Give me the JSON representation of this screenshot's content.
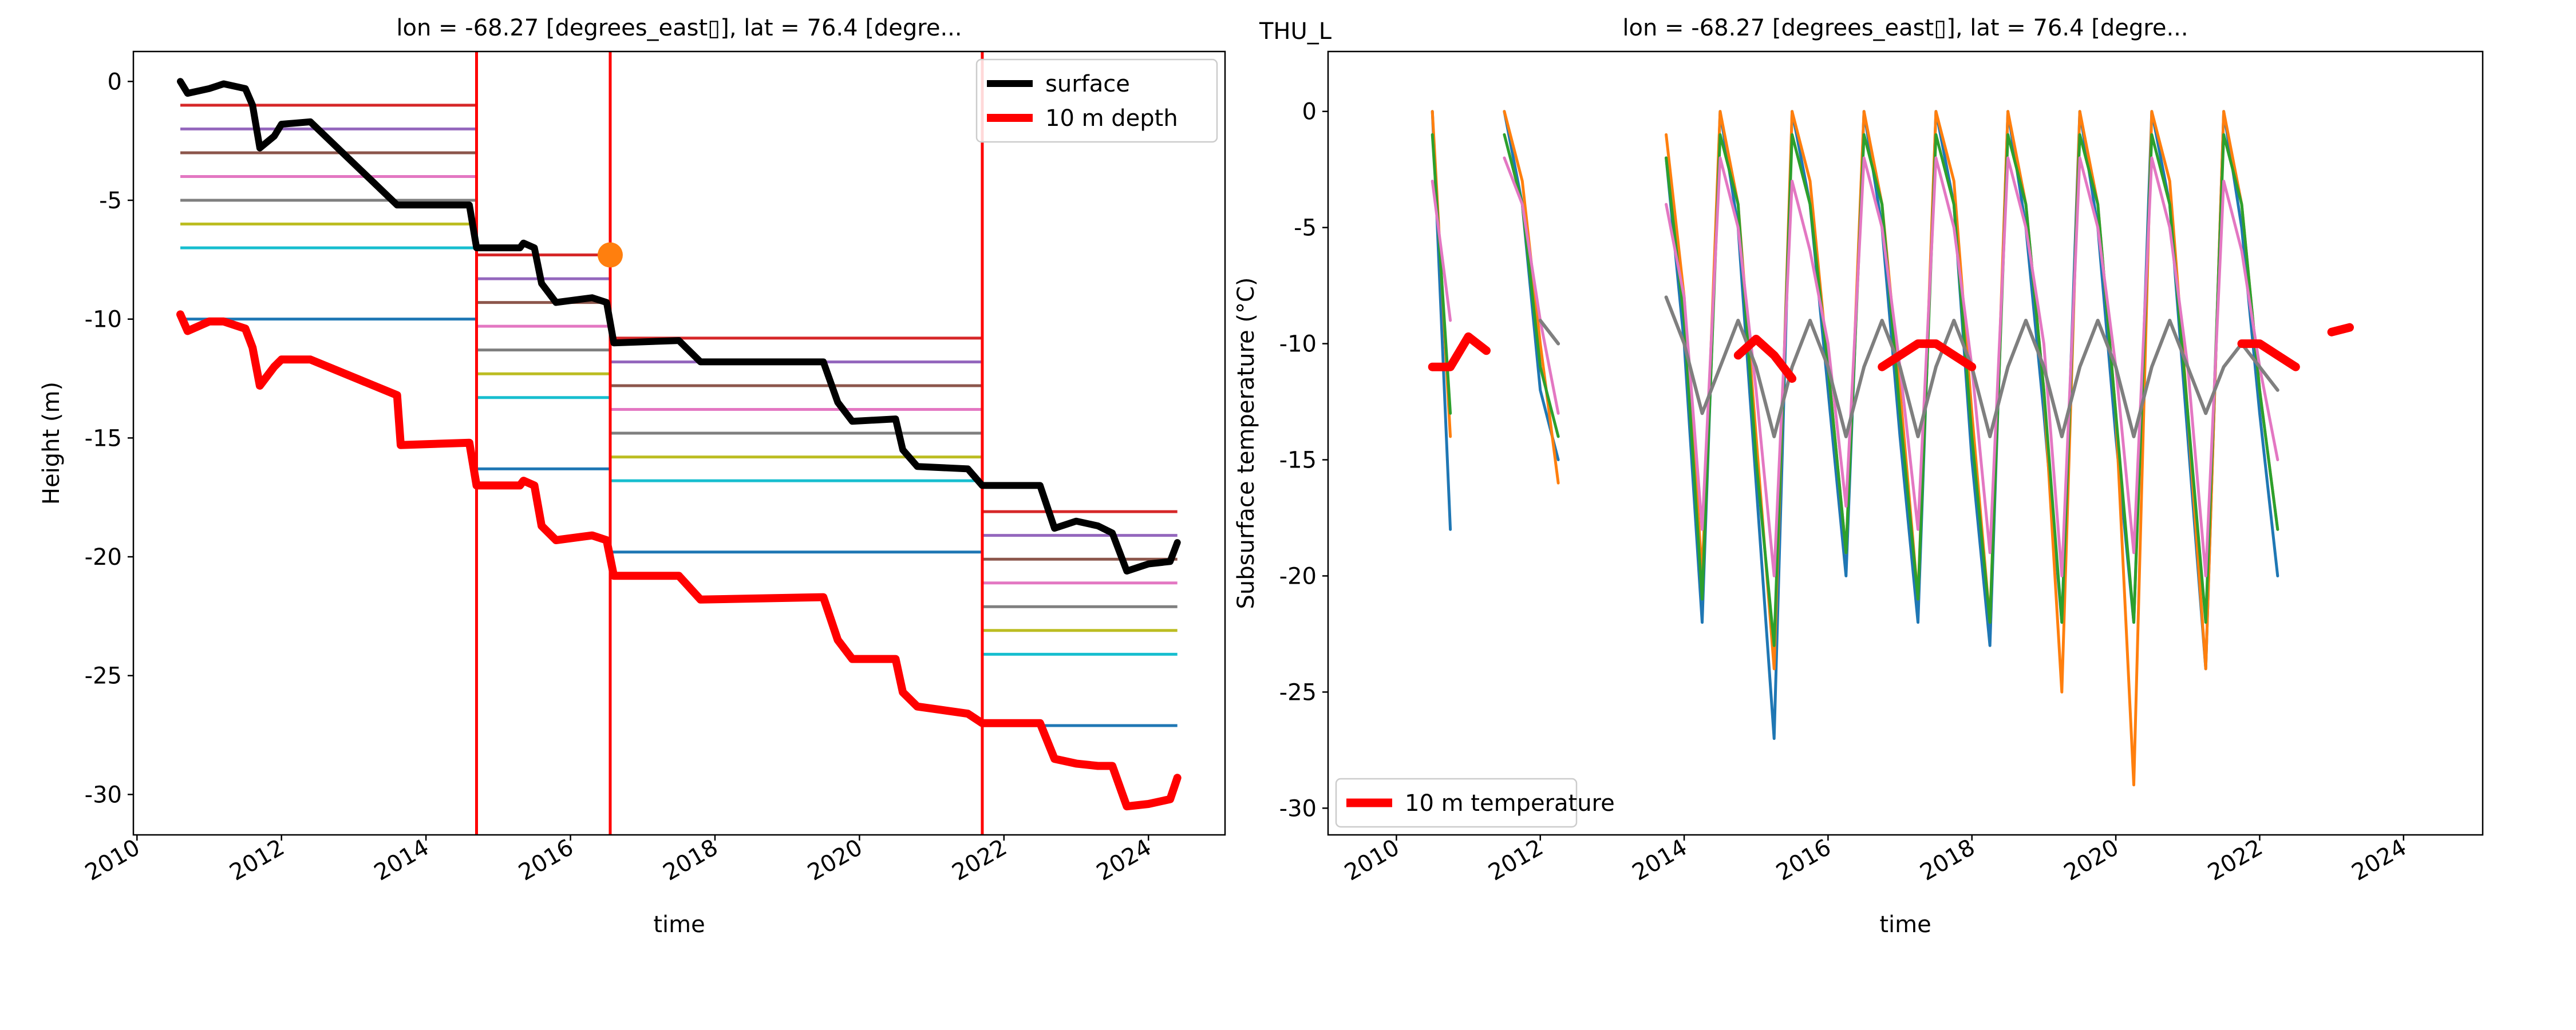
{
  "station": "THU_L",
  "chart_data": [
    {
      "type": "line",
      "title": "lon = -68.27 [degrees_east▯], lat = 76.4 [degre...",
      "x_label": "time",
      "y_label": "Height (m)",
      "xlim": [
        2009.95,
        2025.06
      ],
      "ylim": [
        -31.7,
        1.26
      ],
      "xticks": [
        2010,
        2012,
        2014,
        2016,
        2018,
        2020,
        2022,
        2024
      ],
      "yticks": [
        0,
        -5,
        -10,
        -15,
        -20,
        -25,
        -30
      ],
      "legend": "upper right",
      "x": [
        2010.6,
        2010.7,
        2011.0,
        2011.2,
        2011.5,
        2011.6,
        2011.7,
        2011.9,
        2012.0,
        2012.4,
        2013.6,
        2013.65,
        2014.6,
        2014.7,
        2015.3,
        2015.35,
        2015.5,
        2015.6,
        2015.8,
        2016.3,
        2016.5,
        2016.6,
        2017.5,
        2017.8,
        2019.5,
        2019.7,
        2019.9,
        2020.5,
        2020.6,
        2020.8,
        2021.5,
        2021.7,
        2022.5,
        2022.7,
        2023.0,
        2023.3,
        2023.5,
        2023.7,
        2024.0,
        2024.3,
        2024.4
      ],
      "series": [
        {
          "name": "surface",
          "color": "#000000",
          "width": 12,
          "values": [
            0,
            -0.5,
            -0.3,
            -0.1,
            -0.3,
            -1,
            -2.8,
            -2.3,
            -1.8,
            -1.7,
            -5.2,
            -5.2,
            -5.2,
            -7,
            -7,
            -6.8,
            -7,
            -8.5,
            -9.3,
            -9.1,
            -9.3,
            -11,
            -10.9,
            -11.8,
            -11.8,
            -13.5,
            -14.3,
            -14.2,
            -15.5,
            -16.2,
            -16.3,
            -17,
            -17,
            -18.8,
            -18.5,
            -18.7,
            -19,
            -20.6,
            -20.3,
            -20.2,
            -19.4
          ]
        },
        {
          "name": "10 m depth",
          "color": "#ff0000",
          "width": 14,
          "values": [
            -9.8,
            -10.5,
            -10.1,
            -10.1,
            -10.4,
            -11.2,
            -12.8,
            -12,
            -11.7,
            -11.7,
            -13.2,
            -15.3,
            -15.2,
            -17,
            -17,
            -16.8,
            -17,
            -18.7,
            -19.3,
            -19.1,
            -19.3,
            -20.8,
            -20.8,
            -21.8,
            -21.7,
            -23.5,
            -24.3,
            -24.3,
            -25.7,
            -26.3,
            -26.6,
            -27,
            -27,
            -28.5,
            -28.7,
            -28.8,
            -28.8,
            -30.5,
            -30.4,
            -30.2,
            -29.3
          ]
        }
      ],
      "installation_colors": [
        "#d62728",
        "#9467bd",
        "#8c564b",
        "#e377c2",
        "#7f7f7f",
        "#bcbd22",
        "#17becf",
        "#1f77b4"
      ],
      "installations": [
        {
          "start": 2010.6,
          "end": 2014.7,
          "depths": [
            -1,
            -2,
            -3,
            -4,
            -5,
            -6,
            -7,
            -10
          ]
        },
        {
          "start": 2014.7,
          "end": 2016.55,
          "depths": [
            -7.3,
            -8.3,
            -9.3,
            -10.3,
            -11.3,
            -12.3,
            -13.3,
            -16.3
          ]
        },
        {
          "start": 2016.55,
          "end": 2021.7,
          "depths": [
            -10.8,
            -11.8,
            -12.8,
            -13.8,
            -14.8,
            -15.8,
            -16.8,
            -19.8
          ]
        },
        {
          "start": 2021.7,
          "end": 2024.4,
          "depths": [
            -18.1,
            -19.1,
            -20.1,
            -21.1,
            -22.1,
            -23.1,
            -24.1,
            -27.1
          ]
        }
      ],
      "vlines": [
        2014.7,
        2016.55,
        2021.7
      ],
      "vline_color": "#ff0000",
      "marker": {
        "x": 2016.55,
        "y": -7.3,
        "color": "#ff7f0e"
      }
    },
    {
      "type": "line",
      "title": "lon = -68.27 [degrees_east▯], lat = 76.4 [degre...",
      "x_label": "time",
      "y_label": "Subsurface temperature (°C)",
      "xlim": [
        2009.05,
        2025.1
      ],
      "ylim": [
        -31.15,
        2.58
      ],
      "xticks": [
        2010,
        2012,
        2014,
        2016,
        2018,
        2020,
        2022,
        2024
      ],
      "yticks": [
        0,
        -5,
        -10,
        -15,
        -20,
        -25,
        -30
      ],
      "legend": "lower left",
      "x": [
        2010.5,
        2010.75,
        2011,
        2011.25,
        2011.5,
        2011.75,
        2012,
        2012.25,
        2012.5,
        2012.75,
        2013,
        2013.25,
        2013.5,
        2013.75,
        2014,
        2014.25,
        2014.5,
        2014.75,
        2015,
        2015.25,
        2015.5,
        2015.75,
        2016,
        2016.25,
        2016.5,
        2016.75,
        2017,
        2017.25,
        2017.5,
        2017.75,
        2018,
        2018.25,
        2018.5,
        2018.75,
        2019,
        2019.25,
        2019.5,
        2019.75,
        2020,
        2020.25,
        2020.5,
        2020.75,
        2021,
        2021.25,
        2021.5,
        2021.75,
        2022,
        2022.25,
        2022.5,
        2022.75,
        2023,
        2023.25
      ],
      "series": [
        {
          "color": "#1f77b4",
          "width": 5,
          "values": [
            0,
            -18,
            null,
            null,
            0,
            -4,
            -12,
            -15,
            null,
            null,
            null,
            null,
            null,
            -2,
            -10,
            -22,
            0,
            -5,
            -16,
            -27,
            0,
            -4,
            -12,
            -20,
            0,
            -5,
            -14,
            -22,
            0,
            -4,
            -15,
            -23,
            0,
            -5,
            -13,
            -22,
            0,
            -5,
            -14,
            -22,
            0,
            -4,
            -14,
            -24,
            0,
            -5,
            -13,
            -20,
            null,
            null,
            null,
            null
          ]
        },
        {
          "color": "#ff7f0e",
          "width": 5,
          "values": [
            0,
            -14,
            null,
            null,
            0,
            -3,
            -10,
            -16,
            null,
            null,
            null,
            null,
            null,
            -1,
            -8,
            -20,
            0,
            -4,
            -14,
            -24,
            0,
            -3,
            -11,
            -19,
            0,
            -4,
            -12,
            -21,
            0,
            -3,
            -13,
            -22,
            0,
            -4,
            -12,
            -25,
            0,
            -4,
            -13,
            -29,
            0,
            -3,
            -13,
            -24,
            0,
            -4,
            -12,
            -18,
            null,
            null,
            null,
            null
          ]
        },
        {
          "color": "#2ca02c",
          "width": 5,
          "values": [
            -1,
            -13,
            null,
            null,
            -1,
            -4,
            -11,
            -14,
            null,
            null,
            null,
            null,
            null,
            -2,
            -9,
            -21,
            -1,
            -4,
            -15,
            -23,
            -1,
            -4,
            -11,
            -19,
            -1,
            -4,
            -13,
            -21,
            -1,
            -4,
            -14,
            -22,
            -1,
            -4,
            -12,
            -22,
            -1,
            -4,
            -13,
            -22,
            -1,
            -4,
            -13,
            -22,
            -1,
            -4,
            -12,
            -18,
            null,
            null,
            null,
            null
          ]
        },
        {
          "color": "#e377c2",
          "width": 5,
          "values": [
            -3,
            -9,
            null,
            null,
            -2,
            -4,
            -9,
            -13,
            null,
            null,
            null,
            null,
            null,
            -4,
            -8,
            -18,
            -2,
            -5,
            -12,
            -20,
            -3,
            -6,
            -10,
            -17,
            -2,
            -5,
            -11,
            -18,
            -2,
            -5,
            -11,
            -19,
            -2,
            -5,
            -10,
            -20,
            -2,
            -5,
            -11,
            -19,
            -2,
            -5,
            -11,
            -20,
            -3,
            -6,
            -11,
            -15,
            null,
            null,
            null,
            null
          ]
        },
        {
          "color": "#7f7f7f",
          "width": 6,
          "values": [
            null,
            null,
            null,
            null,
            null,
            null,
            -9,
            -10,
            null,
            null,
            null,
            null,
            null,
            -8,
            -10,
            -13,
            -11,
            -9,
            -11,
            -14,
            -11,
            -9,
            -11,
            -14,
            -11,
            -9,
            -11,
            -14,
            -11,
            -9,
            -11,
            -14,
            -11,
            -9,
            -11,
            -14,
            -11,
            -9,
            -11,
            -14,
            -11,
            -9,
            -11,
            -13,
            -11,
            -10,
            -11,
            -12,
            null,
            null,
            null,
            null
          ]
        },
        {
          "name": "10 m temperature",
          "color": "#ff0000",
          "width": 15,
          "values": [
            -11,
            -11,
            -9.7,
            -10.3,
            null,
            null,
            null,
            null,
            null,
            null,
            null,
            null,
            null,
            null,
            null,
            null,
            null,
            -10.5,
            -9.8,
            -10.5,
            -11.5,
            null,
            null,
            null,
            null,
            -11,
            -10.5,
            -10,
            -10,
            -10.5,
            -11,
            null,
            null,
            null,
            null,
            null,
            null,
            null,
            null,
            null,
            null,
            null,
            null,
            null,
            null,
            -10,
            -10,
            -10.5,
            -11,
            null,
            -9.5,
            -9.3
          ]
        }
      ]
    }
  ]
}
